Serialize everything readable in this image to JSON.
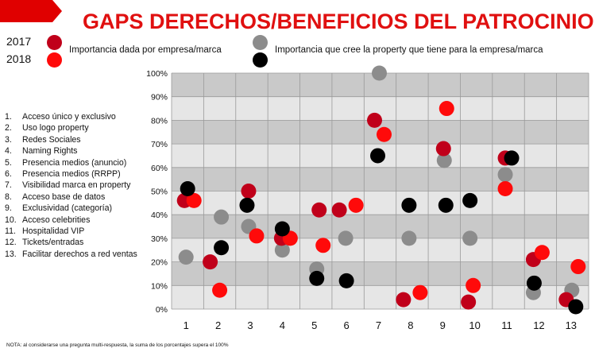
{
  "header": {
    "title": "GAPS DERECHOS/BENEFICIOS DEL PATROCINIO"
  },
  "legend": {
    "year_2017": "2017",
    "year_2018": "2018",
    "company_label": "Importancia dada por empresa/marca",
    "property_label": "Importancia que cree la property que tiene para la empresa/marca"
  },
  "colors": {
    "company_2017": "#c0001a",
    "company_2018": "#ff0a0a",
    "property_2017": "#8c8c8c",
    "property_2018": "#000000",
    "band_dark": "#c9c9c9",
    "band_light": "#e6e6e6",
    "banner": "#e00000"
  },
  "categories": [
    {
      "num": "1.",
      "label": "Acceso único y exclusivo"
    },
    {
      "num": "2.",
      "label": "Uso logo property"
    },
    {
      "num": "3.",
      "label": "Redes Sociales"
    },
    {
      "num": "4.",
      "label": "Naming Rights"
    },
    {
      "num": "5.",
      "label": "Presencia medios (anuncio)"
    },
    {
      "num": "6.",
      "label": "Presencia medios (RRPP)"
    },
    {
      "num": "7.",
      "label": "Visibilidad marca en property"
    },
    {
      "num": "8.",
      "label": "Acceso base de datos"
    },
    {
      "num": "9.",
      "label": "Exclusividad (categoría)"
    },
    {
      "num": "10.",
      "label": "Acceso celebrities"
    },
    {
      "num": "11.",
      "label": "Hospitalidad VIP"
    },
    {
      "num": "12.",
      "label": "Tickets/entradas"
    },
    {
      "num": "13.",
      "label": "Facilitar derechos a red ventas"
    }
  ],
  "note": "NOTA: al considerarse una pregunta multi-respuesta, la suma de los porcentajes supera el 100%",
  "chart_data": {
    "type": "scatter",
    "title": "GAPS DERECHOS/BENEFICIOS DEL PATROCINIO",
    "xlabel": "",
    "ylabel": "",
    "x": [
      "1",
      "2",
      "3",
      "4",
      "5",
      "6",
      "7",
      "8",
      "9",
      "10",
      "11",
      "12",
      "13"
    ],
    "ylim": [
      0,
      100
    ],
    "yticks": [
      "0%",
      "10%",
      "20%",
      "30%",
      "40%",
      "50%",
      "60%",
      "70%",
      "80%",
      "90%",
      "100%"
    ],
    "series": [
      {
        "name": "Importancia dada por empresa/marca 2017",
        "values": [
          46,
          20,
          50,
          30,
          42,
          42,
          80,
          4,
          68,
          3,
          64,
          21,
          4
        ]
      },
      {
        "name": "Importancia dada por empresa/marca 2018",
        "values": [
          46,
          8,
          31,
          30,
          27,
          44,
          74,
          7,
          85,
          10,
          51,
          24,
          18
        ]
      },
      {
        "name": "Importancia que cree la property 2017",
        "values": [
          22,
          39,
          35,
          25,
          17,
          30,
          100,
          30,
          63,
          30,
          57,
          7,
          8
        ]
      },
      {
        "name": "Importancia que cree la property 2018",
        "values": [
          51,
          26,
          44,
          34,
          13,
          12,
          65,
          44,
          44,
          46,
          64,
          11,
          1
        ]
      }
    ]
  }
}
